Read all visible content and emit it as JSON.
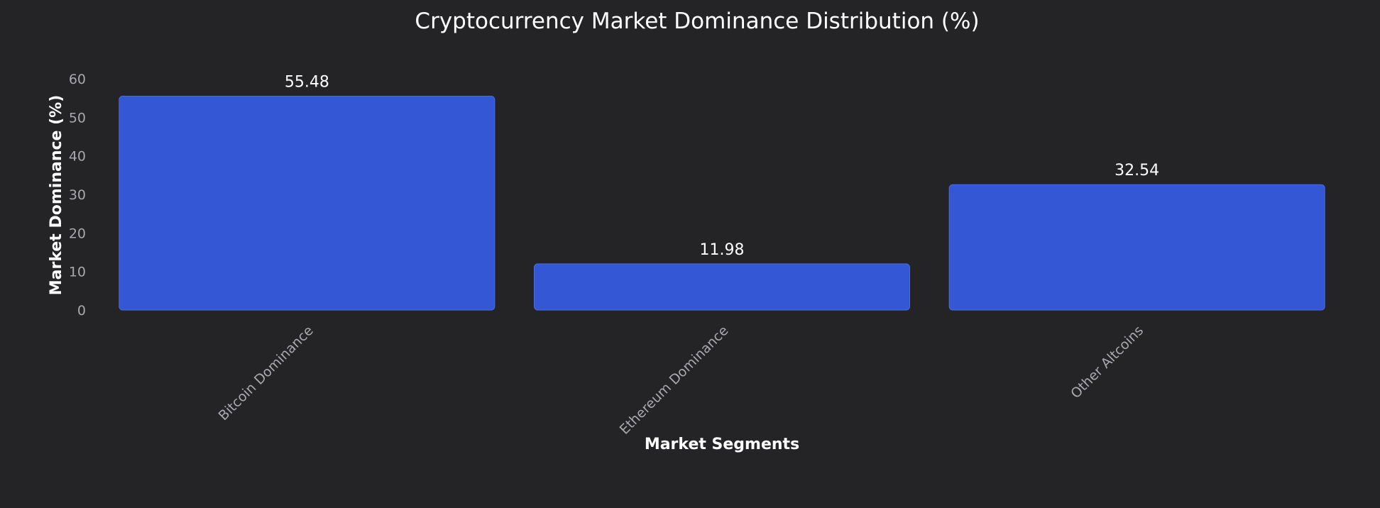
{
  "chart_data": {
    "type": "bar",
    "title": "Cryptocurrency Market Dominance Distribution (%)",
    "xlabel": "Market Segments",
    "ylabel": "Market Dominance (%)",
    "categories": [
      "Bitcoin Dominance",
      "Ethereum Dominance",
      "Other Altcoins"
    ],
    "values": [
      55.48,
      11.98,
      32.54
    ],
    "data_labels": [
      "55.48",
      "11.98",
      "32.54"
    ],
    "ylim": [
      0,
      60
    ],
    "yticks": [
      0,
      10,
      20,
      30,
      40,
      50,
      60
    ],
    "ytick_labels": [
      "0",
      "10",
      "20",
      "30",
      "40",
      "50",
      "60"
    ],
    "grid": false,
    "legend": "none",
    "colors": {
      "background": "#242427",
      "bar": "#3457d5",
      "bar_edge": "#4a6be0",
      "text": "#ffffff",
      "tick_text": "#a8a8ad"
    }
  }
}
